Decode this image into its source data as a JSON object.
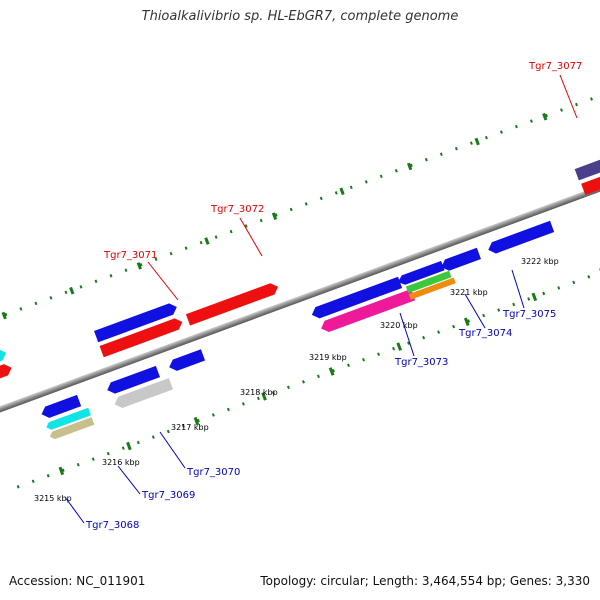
{
  "title": "Thioalkalivibrio sp. HL-EbGR7, complete genome",
  "footer": {
    "accession": "Accession: NC_011901",
    "topology": "Topology: circular; Length: 3,464,554 bp; Genes: 3,330"
  },
  "ticks": [
    "3215 kbp",
    "3216 kbp",
    "3217 kbp",
    "3218 kbp",
    "3219 kbp",
    "3220 kbp",
    "3221 kbp",
    "3222 kbp"
  ],
  "gene_labels": {
    "forward": [
      "Tgr7_3071",
      "Tgr7_3072",
      "Tgr7_3077"
    ],
    "reverse": [
      "Tgr7_3068",
      "Tgr7_3069",
      "Tgr7_3070",
      "Tgr7_3073",
      "Tgr7_3074",
      "Tgr7_3075"
    ]
  },
  "colors": {
    "forward_label": "#dd0000",
    "reverse_label": "#0000bb",
    "cds_blue": "#1010e0",
    "cds_red": "#ee1010",
    "cds_magenta": "#ee1a9a",
    "cds_orange": "#ee8c10",
    "cds_green": "#3cc83c",
    "cds_cyan": "#10e4e4",
    "cds_grey": "#c8c8c8",
    "cds_khaki": "#c8c08c",
    "cds_purple": "#4a3f8a",
    "backbone": "#8c8c8c",
    "tick": "#1a7a1a"
  }
}
